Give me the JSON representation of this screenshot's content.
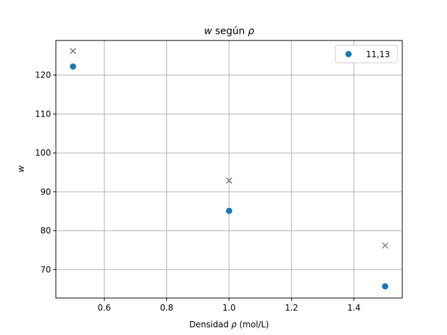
{
  "chart_data": {
    "type": "scatter",
    "title": "w según ρ",
    "title_parts": {
      "var_w": "w",
      "middle": " según ",
      "var_rho": "ρ"
    },
    "xlabel_parts": {
      "prefix": "Densidad ",
      "var": "ρ",
      "suffix": " (mol/L)"
    },
    "ylabel": "w",
    "xlim": [
      0.445,
      1.555
    ],
    "ylim": [
      62.7,
      128.9
    ],
    "x_ticks": [
      0.6,
      0.8,
      1.0,
      1.2,
      1.4
    ],
    "x_tick_labels": [
      "0.6",
      "0.8",
      "1.0",
      "1.2",
      "1.4"
    ],
    "y_ticks": [
      70,
      80,
      90,
      100,
      110,
      120
    ],
    "y_tick_labels": [
      "70",
      "80",
      "90",
      "100",
      "110",
      "120"
    ],
    "grid": true,
    "legend_position": "upper right",
    "series": [
      {
        "name": "11,13",
        "marker": "circle",
        "color": "#1f77b4",
        "x": [
          0.5,
          1.0,
          1.5
        ],
        "y": [
          122.2,
          85.1,
          65.7
        ]
      },
      {
        "marker": "x",
        "color": "#808080",
        "x": [
          0.5,
          1.0,
          1.5
        ],
        "y": [
          126.2,
          92.9,
          76.2
        ]
      }
    ]
  }
}
